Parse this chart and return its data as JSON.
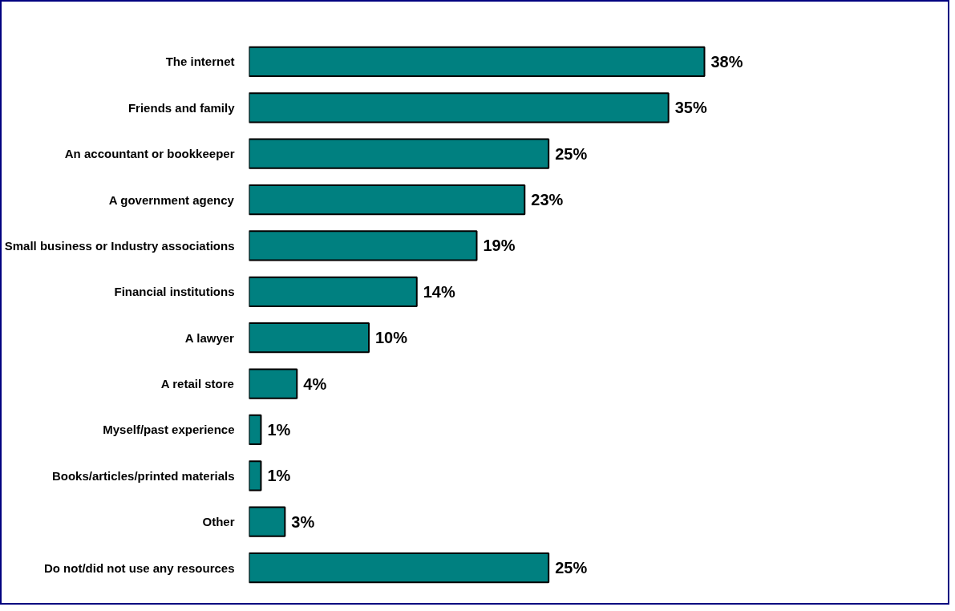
{
  "chart_data": {
    "type": "bar",
    "orientation": "horizontal",
    "categories": [
      "The internet",
      "Friends and family",
      "An accountant or bookkeeper",
      "A government agency",
      "Small business or Industry associations",
      "Financial institutions",
      "A lawyer",
      "A retail store",
      "Myself/past experience",
      "Books/articles/printed materials",
      "Other",
      "Do not/did not use any resources"
    ],
    "values": [
      38,
      35,
      25,
      23,
      19,
      14,
      10,
      4,
      1,
      1,
      3,
      25
    ],
    "value_labels": [
      "38%",
      "35%",
      "25%",
      "23%",
      "19%",
      "14%",
      "10%",
      "4%",
      "1%",
      "1%",
      "3%",
      "25%"
    ],
    "color": "#008080",
    "grid": false
  }
}
